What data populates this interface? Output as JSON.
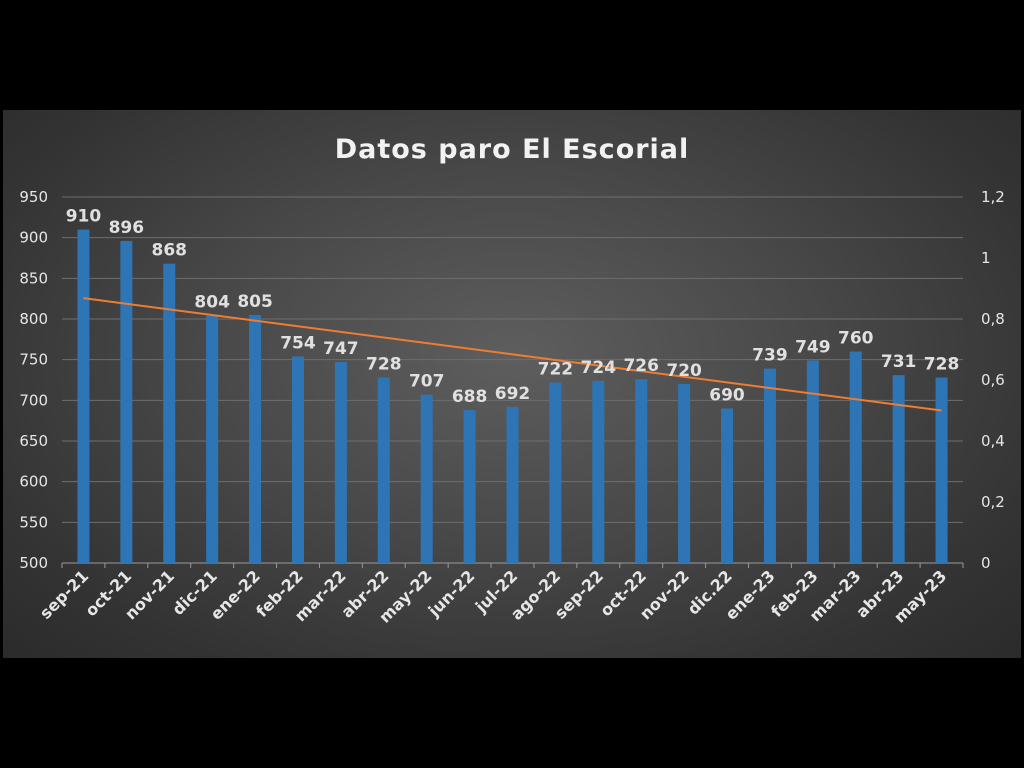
{
  "chart_data": {
    "type": "bar",
    "title": "Datos paro El Escorial",
    "categories": [
      "sep-21",
      "oct-21",
      "nov-21",
      "dic-21",
      "ene-22",
      "feb-22",
      "mar-22",
      "abr-22",
      "may-22",
      "jun-22",
      "jul-22",
      "ago-22",
      "sep-22",
      "oct-22",
      "nov-22",
      "dic.22",
      "ene-23",
      "feb-23",
      "mar-23",
      "abr-23",
      "may-23"
    ],
    "values": [
      910,
      896,
      868,
      804,
      805,
      754,
      747,
      728,
      707,
      688,
      692,
      722,
      724,
      726,
      720,
      690,
      739,
      749,
      760,
      731,
      728
    ],
    "ylim": [
      500,
      950
    ],
    "yticks": [
      "500",
      "550",
      "600",
      "650",
      "700",
      "750",
      "800",
      "850",
      "900",
      "950"
    ],
    "y2lim": [
      0,
      1.2
    ],
    "y2ticks": [
      "0",
      "0,2",
      "0,4",
      "0,6",
      "0,8",
      "1",
      "1,2"
    ],
    "trendline": {
      "type": "linear",
      "axis": "primary"
    },
    "grid": true,
    "legend": "none",
    "colors": {
      "bar": "#2e75b6",
      "trendline": "#ed7d31",
      "background": "#474747",
      "text": "#e6e6e6"
    }
  }
}
